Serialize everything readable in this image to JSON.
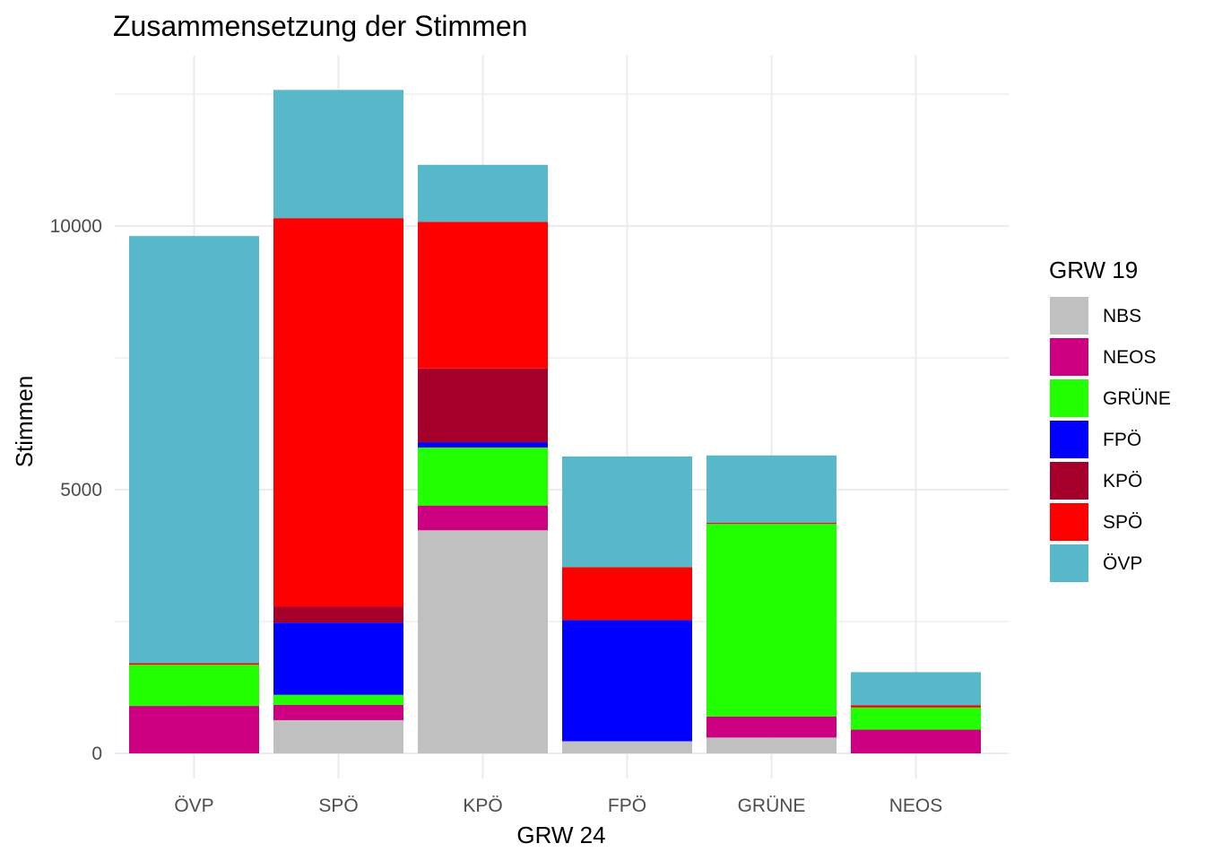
{
  "chart_data": {
    "type": "bar",
    "stacked": true,
    "title": "Zusammensetzung der Stimmen",
    "xlabel": "GRW 24",
    "ylabel": "Stimmen",
    "ylim": [
      0,
      12700
    ],
    "yticks": [
      0,
      5000,
      10000
    ],
    "ytick_labels": [
      "0",
      "5000",
      "10000"
    ],
    "categories": [
      "ÖVP",
      "SPÖ",
      "KPÖ",
      "FPÖ",
      "GRÜNE",
      "NEOS"
    ],
    "legend_title": "GRW 19",
    "legend_position": "right",
    "grid": true,
    "series": [
      {
        "name": "NBS",
        "color": "#C0C0C0",
        "values": [
          0,
          630,
          4230,
          230,
          300,
          0
        ]
      },
      {
        "name": "NEOS",
        "color": "#CC0080",
        "values": [
          900,
          290,
          470,
          0,
          400,
          450
        ]
      },
      {
        "name": "GRÜNE",
        "color": "#22FF00",
        "values": [
          780,
          190,
          1100,
          0,
          3650,
          420
        ]
      },
      {
        "name": "FPÖ",
        "color": "#0000FF",
        "values": [
          0,
          1370,
          100,
          2300,
          0,
          0
        ]
      },
      {
        "name": "KPÖ",
        "color": "#A5002C",
        "values": [
          0,
          300,
          1400,
          0,
          0,
          0
        ]
      },
      {
        "name": "SPÖ",
        "color": "#FF0000",
        "values": [
          30,
          7370,
          2780,
          1000,
          20,
          40
        ]
      },
      {
        "name": "ÖVP",
        "color": "#56B8C8",
        "values": [
          8100,
          2430,
          1080,
          2100,
          1280,
          630
        ]
      }
    ]
  }
}
